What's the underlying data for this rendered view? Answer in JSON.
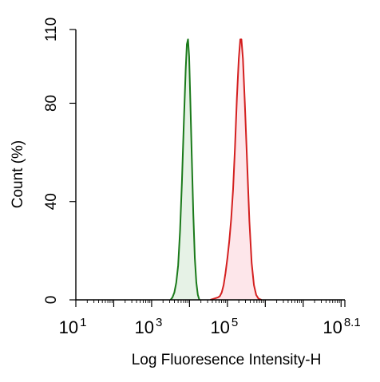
{
  "chart_data": {
    "type": "area",
    "xlabel": "Log Fluoresence Intensity-H",
    "ylabel": "Count  (%)",
    "x_scale": "log10",
    "xlim": [
      1,
      8.1
    ],
    "ylim": [
      0,
      110
    ],
    "x_ticks": [
      {
        "value": 1,
        "base": "10",
        "exp": "1"
      },
      {
        "value": 3,
        "base": "10",
        "exp": "3"
      },
      {
        "value": 5,
        "base": "10",
        "exp": "5"
      },
      {
        "value": 8.1,
        "base": "10",
        "exp": "8.1"
      }
    ],
    "y_ticks": [
      0,
      40,
      80,
      110
    ],
    "grid": false,
    "legend": "none",
    "series": [
      {
        "line_color": "#1a7a1a",
        "fill_color": "#e6f2e6",
        "points": [
          [
            3.5,
            0
          ],
          [
            3.55,
            1
          ],
          [
            3.6,
            3
          ],
          [
            3.65,
            7
          ],
          [
            3.7,
            14
          ],
          [
            3.75,
            28
          ],
          [
            3.8,
            48
          ],
          [
            3.85,
            72
          ],
          [
            3.9,
            94
          ],
          [
            3.93,
            104
          ],
          [
            3.96,
            106
          ],
          [
            3.99,
            99
          ],
          [
            4.02,
            82
          ],
          [
            4.06,
            58
          ],
          [
            4.1,
            35
          ],
          [
            4.14,
            17
          ],
          [
            4.18,
            7
          ],
          [
            4.22,
            2
          ],
          [
            4.26,
            0
          ]
        ]
      },
      {
        "line_color": "#d42020",
        "fill_color": "#fde6ea",
        "points": [
          [
            4.55,
            0
          ],
          [
            4.65,
            0.5
          ],
          [
            4.75,
            1
          ],
          [
            4.8,
            1.5
          ],
          [
            4.85,
            3
          ],
          [
            4.9,
            6
          ],
          [
            4.95,
            11
          ],
          [
            5.0,
            17
          ],
          [
            5.05,
            24
          ],
          [
            5.1,
            33
          ],
          [
            5.15,
            45
          ],
          [
            5.2,
            62
          ],
          [
            5.25,
            82
          ],
          [
            5.3,
            98
          ],
          [
            5.34,
            106
          ],
          [
            5.37,
            106
          ],
          [
            5.41,
            98
          ],
          [
            5.46,
            80
          ],
          [
            5.52,
            56
          ],
          [
            5.58,
            32
          ],
          [
            5.64,
            15
          ],
          [
            5.7,
            6
          ],
          [
            5.76,
            2
          ],
          [
            5.82,
            0.5
          ],
          [
            5.9,
            0
          ]
        ]
      }
    ]
  }
}
